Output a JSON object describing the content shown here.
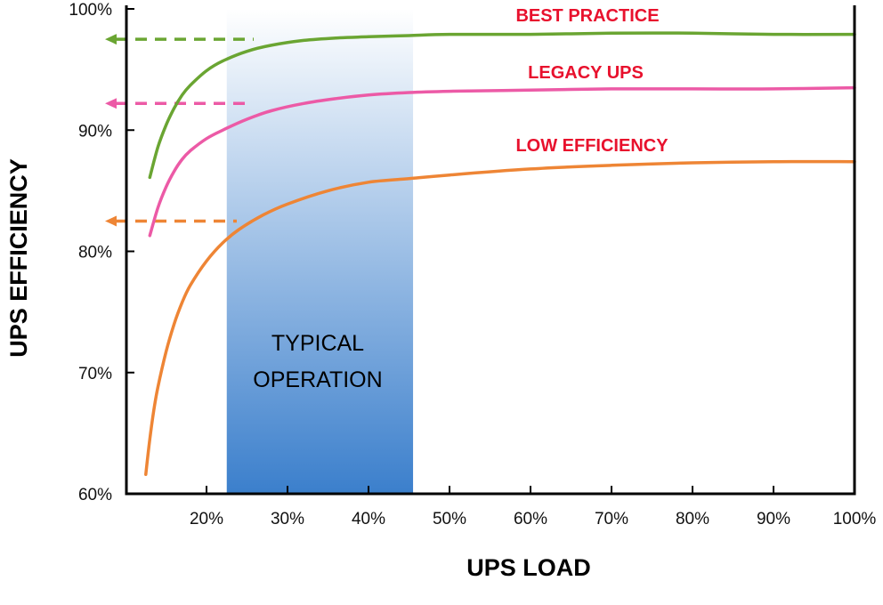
{
  "chart_data": {
    "type": "line",
    "title": "",
    "xlabel": "UPS LOAD",
    "ylabel": "UPS EFFICIENCY",
    "xlim": [
      10,
      100
    ],
    "ylim": [
      60,
      100
    ],
    "x_ticks": [
      20,
      30,
      40,
      50,
      60,
      70,
      80,
      90,
      100
    ],
    "x_tick_labels": [
      "20%",
      "30%",
      "40%",
      "50%",
      "60%",
      "70%",
      "80%",
      "90%",
      "100%"
    ],
    "y_ticks": [
      60,
      70,
      80,
      90,
      100
    ],
    "y_tick_labels": [
      "60%",
      "70%",
      "80%",
      "90%",
      "100%"
    ],
    "grid": false,
    "band": {
      "x_start": 22.5,
      "x_end": 45.5,
      "label_lines": [
        "TYPICAL",
        "OPERATION"
      ],
      "color_top": "#ffffff",
      "color_bottom": "#3b7fcc"
    },
    "series": [
      {
        "name": "BEST PRACTICE",
        "color": "#6aa532",
        "label_color": "#e8112d",
        "x": [
          13,
          14,
          15,
          16,
          17,
          18,
          20,
          22,
          25,
          28,
          32,
          36,
          40,
          45,
          50,
          60,
          70,
          80,
          90,
          100
        ],
        "y": [
          86.1,
          88.6,
          90.4,
          91.8,
          92.9,
          93.7,
          94.9,
          95.7,
          96.5,
          97.0,
          97.4,
          97.6,
          97.7,
          97.8,
          97.9,
          97.9,
          98.0,
          98.0,
          97.9,
          97.9
        ],
        "arrow_y": 97.5
      },
      {
        "name": "LEGACY UPS",
        "color": "#ec5aa6",
        "label_color": "#e8112d",
        "x": [
          13,
          14,
          15,
          16,
          17,
          18,
          20,
          22,
          25,
          28,
          32,
          36,
          40,
          45,
          50,
          60,
          70,
          80,
          90,
          100
        ],
        "y": [
          81.3,
          83.6,
          85.3,
          86.6,
          87.6,
          88.3,
          89.3,
          90.0,
          90.9,
          91.6,
          92.2,
          92.6,
          92.9,
          93.1,
          93.2,
          93.3,
          93.4,
          93.4,
          93.4,
          93.5
        ],
        "arrow_y": 92.2
      },
      {
        "name": "LOW EFFICIENCY",
        "color": "#ee8535",
        "label_color": "#e8112d",
        "x": [
          12.5,
          13,
          13.5,
          14,
          15,
          16,
          17,
          18,
          20,
          22,
          24,
          27,
          30,
          35,
          40,
          45,
          50,
          60,
          70,
          80,
          90,
          100
        ],
        "y": [
          61.6,
          64.5,
          66.9,
          68.8,
          71.7,
          74.0,
          75.8,
          77.2,
          79.2,
          80.7,
          81.8,
          83.0,
          83.9,
          85.0,
          85.7,
          86.0,
          86.3,
          86.8,
          87.1,
          87.3,
          87.4,
          87.4
        ],
        "arrow_y": 82.5
      }
    ]
  }
}
